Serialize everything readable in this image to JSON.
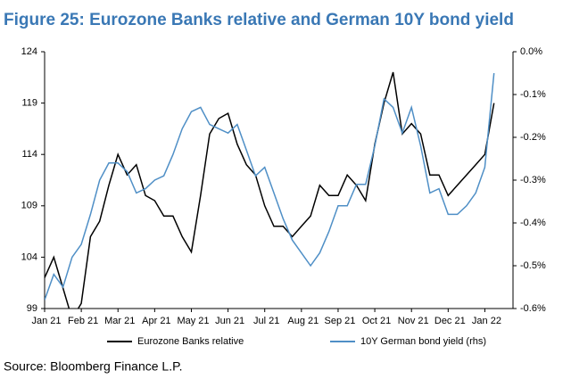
{
  "chart_data": {
    "type": "line",
    "title": "Figure 25: Eurozone Banks relative and German 10Y bond yield",
    "source": "Source: Bloomberg Finance L.P.",
    "categories": [
      "Jan 21",
      null,
      null,
      null,
      "Feb 21",
      null,
      null,
      null,
      "Mar 21",
      null,
      null,
      null,
      "Apr 21",
      null,
      null,
      null,
      "May 21",
      null,
      null,
      null,
      "Jun 21",
      null,
      null,
      null,
      "Jul 21",
      null,
      null,
      null,
      "Aug 21",
      null,
      null,
      null,
      "Sep 21",
      null,
      null,
      null,
      "Oct 21",
      null,
      null,
      null,
      "Nov 21",
      null,
      null,
      null,
      "Dec 21",
      null,
      null,
      null,
      "Jan 22",
      null
    ],
    "series": [
      {
        "name": "Eurozone Banks relative",
        "color": "#000000",
        "axis": "y",
        "values": [
          102,
          104,
          101,
          98,
          99.5,
          106,
          107.5,
          111,
          114,
          112,
          113,
          110,
          109.5,
          108,
          108,
          106,
          104.5,
          110,
          116,
          117.5,
          118,
          115,
          113,
          112,
          109,
          107,
          107,
          106,
          107,
          108,
          111,
          110,
          110,
          112,
          111,
          109.5,
          115,
          119,
          122,
          116,
          117,
          116,
          112,
          112,
          110,
          111,
          112,
          113,
          114,
          119
        ]
      },
      {
        "name": "10Y German bond yield (rhs)",
        "color": "#4f8fc6",
        "axis": "y2",
        "values": [
          -0.58,
          -0.52,
          -0.55,
          -0.48,
          -0.45,
          -0.38,
          -0.3,
          -0.26,
          -0.26,
          -0.28,
          -0.33,
          -0.32,
          -0.3,
          -0.29,
          -0.24,
          -0.18,
          -0.14,
          -0.13,
          -0.17,
          -0.18,
          -0.19,
          -0.17,
          -0.23,
          -0.29,
          -0.27,
          -0.33,
          -0.39,
          -0.44,
          -0.47,
          -0.5,
          -0.47,
          -0.42,
          -0.36,
          -0.36,
          -0.31,
          -0.31,
          -0.22,
          -0.11,
          -0.13,
          -0.19,
          -0.13,
          -0.22,
          -0.33,
          -0.32,
          -0.38,
          -0.38,
          -0.36,
          -0.33,
          -0.27,
          -0.05
        ]
      }
    ],
    "ylim": [
      99,
      124
    ],
    "yticks": [
      99,
      104,
      109,
      114,
      119,
      124
    ],
    "y2lim": [
      -0.6,
      0
    ],
    "y2ticks": [
      {
        "value": 0,
        "label": "0.0%"
      },
      {
        "value": -0.1,
        "label": "-0.1%"
      },
      {
        "value": -0.2,
        "label": "-0.2%"
      },
      {
        "value": -0.3,
        "label": "-0.3%"
      },
      {
        "value": -0.4,
        "label": "-0.4%"
      },
      {
        "value": -0.5,
        "label": "-0.5%"
      },
      {
        "value": -0.6,
        "label": "-0.6%"
      }
    ],
    "grid": false,
    "legend": "bottom"
  }
}
